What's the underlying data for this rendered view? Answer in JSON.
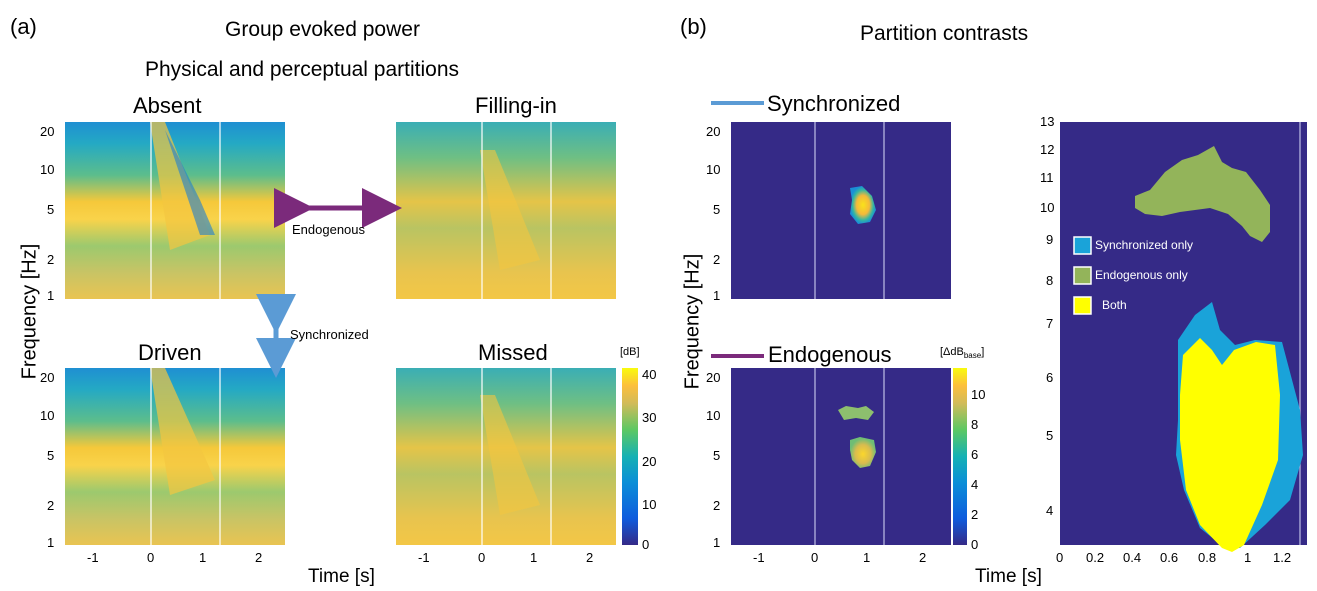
{
  "panel_a": {
    "label": "(a)",
    "title_line1": "Group evoked power",
    "title_line2": "Physical and perceptual partitions",
    "ylabel": "Frequency [Hz]",
    "xlabel": "Time [s]",
    "endogenous_arrow_label": "Endogenous",
    "synchronized_arrow_label": "Synchronized",
    "colorbar_unit": "[dB]"
  },
  "panel_b": {
    "label": "(b)",
    "title": "Partition contrasts",
    "ylabel": "Frequency [Hz]",
    "xlabel": "Time [s]",
    "legend_sync": "Synchronized",
    "legend_endo": "Endogenous",
    "colorbar_unit_prefix": "[ΔdB",
    "colorbar_unit_sub": "base",
    "colorbar_unit_suffix": "]",
    "overlap_legend": [
      "Synchronized only",
      "Endogenous only",
      "Both"
    ]
  },
  "colors": {
    "sync_line": "#5b9bd5",
    "endo_line": "#7b2a7b",
    "plot_bg": "#352a87",
    "sync_only": "#1aa3d9",
    "endo_only": "#93b45a",
    "both": "#ffff00"
  },
  "chart_data": [
    {
      "type": "heatmap",
      "subplots": [
        "Absent",
        "Filling-in",
        "Driven",
        "Missed"
      ],
      "x_ticks": [
        "-1",
        "0",
        "1",
        "2"
      ],
      "y_ticks": [
        "20",
        "10",
        "5",
        "2",
        "1"
      ],
      "xlim": [
        -1.6,
        2.4
      ],
      "ylim": [
        1,
        25
      ],
      "y_scale": "log",
      "vlines": [
        0,
        1.2
      ],
      "colorbar": {
        "unit": "[dB]",
        "ticks": [
          "40",
          "30",
          "20",
          "10",
          "0"
        ],
        "range": [
          0,
          40
        ]
      }
    },
    {
      "type": "heatmap",
      "subplots": [
        "Synchronized",
        "Endogenous"
      ],
      "x_ticks": [
        "-1",
        "0",
        "1",
        "2"
      ],
      "y_ticks": [
        "20",
        "10",
        "5",
        "2",
        "1"
      ],
      "xlim": [
        -1.6,
        2.4
      ],
      "ylim": [
        1,
        25
      ],
      "y_scale": "log",
      "vlines": [
        0,
        1.2
      ],
      "colorbar": {
        "ticks": [
          "10",
          "8",
          "6",
          "4",
          "2",
          "0"
        ],
        "range": [
          0,
          12
        ]
      }
    },
    {
      "type": "area",
      "x_ticks": [
        "0",
        "0.2",
        "0.4",
        "0.6",
        "0.8",
        "1",
        "1.2"
      ],
      "y_ticks": [
        "13",
        "12",
        "11",
        "10",
        "9",
        "8",
        "7",
        "6",
        "5",
        "4"
      ],
      "xlim": [
        0,
        1.3
      ],
      "ylim": [
        3.5,
        13
      ],
      "y_scale": "log",
      "vline": 1.23,
      "regions": [
        "Synchronized only",
        "Endogenous only",
        "Both"
      ]
    }
  ]
}
